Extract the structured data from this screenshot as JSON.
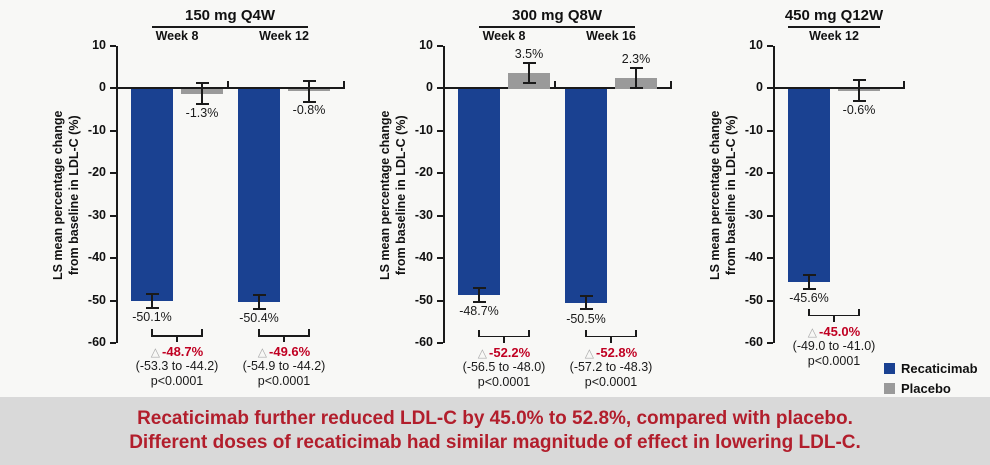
{
  "chart_data": {
    "type": "bar",
    "ylabel_lines": [
      "LS mean percentage change",
      "from baseline in LDL-C (%)"
    ],
    "ylim": [
      -60,
      10
    ],
    "yticks": [
      "10",
      "0",
      "-10",
      "-20",
      "-30",
      "-40",
      "-50",
      "-60"
    ],
    "grid": false,
    "legend_position": "bottom-right",
    "delta_symbol": "△",
    "colors": {
      "recaticimab_bar": "#1a4191",
      "placebo_bar": "#9a9a9a",
      "axis": "#1a1a1a",
      "delta_text": "#c00022",
      "banner_text": "#b21e2c",
      "banner_bg": "#d9d9d9"
    },
    "legend": [
      {
        "label": "Recaticimab",
        "color": "#1a4191"
      },
      {
        "label": "Placebo",
        "color": "#9a9a9a"
      }
    ],
    "panels": [
      {
        "title": "150 mg Q4W",
        "groups": [
          {
            "week": "Week 8",
            "recaticimab": {
              "value": -50.1,
              "label": "-50.1%",
              "err": 1.6
            },
            "placebo": {
              "value": -1.3,
              "label": "-1.3%",
              "err": 2.4
            },
            "difference": {
              "delta": "-48.7%",
              "ci": "(-53.3 to -44.2)",
              "p": "p<0.0001"
            }
          },
          {
            "week": "Week 12",
            "recaticimab": {
              "value": -50.4,
              "label": "-50.4%",
              "err": 1.6
            },
            "placebo": {
              "value": -0.8,
              "label": "-0.8%",
              "err": 2.4
            },
            "difference": {
              "delta": "-49.6%",
              "ci": "(-54.9 to -44.2)",
              "p": "p<0.0001"
            }
          }
        ]
      },
      {
        "title": "300 mg Q8W",
        "groups": [
          {
            "week": "Week 8",
            "recaticimab": {
              "value": -48.7,
              "label": "-48.7%",
              "err": 1.6
            },
            "placebo": {
              "value": 3.5,
              "label": "3.5%",
              "err": 2.4
            },
            "difference": {
              "delta": "-52.2%",
              "ci": "(-56.5 to -48.0)",
              "p": "p<0.0001"
            }
          },
          {
            "week": "Week 16",
            "recaticimab": {
              "value": -50.5,
              "label": "-50.5%",
              "err": 1.6
            },
            "placebo": {
              "value": 2.3,
              "label": "2.3%",
              "err": 2.4
            },
            "difference": {
              "delta": "-52.8%",
              "ci": "(-57.2 to -48.3)",
              "p": "p<0.0001"
            }
          }
        ]
      },
      {
        "title": "450 mg Q12W",
        "groups": [
          {
            "week": "Week 12",
            "recaticimab": {
              "value": -45.6,
              "label": "-45.6%",
              "err": 1.6
            },
            "placebo": {
              "value": -0.6,
              "label": "-0.6%",
              "err": 2.4
            },
            "difference": {
              "delta": "-45.0%",
              "ci": "(-49.0 to -41.0)",
              "p": "p<0.0001"
            }
          }
        ]
      }
    ]
  },
  "footer": {
    "lines": [
      "Recaticimab further reduced LDL-C by 45.0% to 52.8%, compared with placebo.",
      "Different doses of recaticimab had similar magnitude of effect in lowering LDL-C."
    ]
  }
}
